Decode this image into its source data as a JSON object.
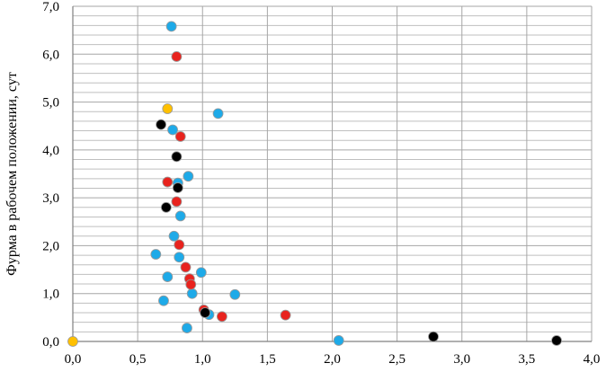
{
  "chart_data": {
    "type": "scatter",
    "title": "",
    "xlabel": "",
    "ylabel": "Фурма в рабочем положении, сут",
    "xlim": [
      0,
      4
    ],
    "ylim": [
      0,
      7
    ],
    "grid": true,
    "x_ticks": [
      "0,0",
      "0,5",
      "1,0",
      "1,5",
      "2,0",
      "2,5",
      "3,0",
      "3,5",
      "4,0"
    ],
    "y_ticks": [
      "0,0",
      "1,0",
      "2,0",
      "3,0",
      "4,0",
      "5,0",
      "6,0",
      "7,0"
    ],
    "colors": {
      "blue": "#1eaae8",
      "red": "#e8231e",
      "black": "#000000",
      "orange": "#ffc000",
      "grid_major": "#a6a6a6",
      "grid_minor": "#bfbfbf",
      "point_outline": "#9a9a9a"
    },
    "series": [
      {
        "color": "#1eaae8",
        "points": [
          [
            0.76,
            6.58
          ],
          [
            1.12,
            4.76
          ],
          [
            0.77,
            4.42
          ],
          [
            0.89,
            3.45
          ],
          [
            0.81,
            3.31
          ],
          [
            0.83,
            2.62
          ],
          [
            0.78,
            2.2
          ],
          [
            0.64,
            1.82
          ],
          [
            0.82,
            1.76
          ],
          [
            0.99,
            1.44
          ],
          [
            0.73,
            1.35
          ],
          [
            1.25,
            0.98
          ],
          [
            0.92,
            1.0
          ],
          [
            0.7,
            0.85
          ],
          [
            1.05,
            0.56
          ],
          [
            0.88,
            0.28
          ],
          [
            2.05,
            0.02
          ]
        ]
      },
      {
        "color": "#e8231e",
        "points": [
          [
            0.8,
            5.95
          ],
          [
            0.83,
            4.28
          ],
          [
            0.73,
            3.33
          ],
          [
            0.8,
            2.92
          ],
          [
            0.82,
            2.02
          ],
          [
            0.87,
            1.55
          ],
          [
            0.9,
            1.31
          ],
          [
            0.91,
            1.19
          ],
          [
            1.01,
            0.66
          ],
          [
            1.15,
            0.52
          ],
          [
            1.64,
            0.55
          ]
        ]
      },
      {
        "color": "#000000",
        "points": [
          [
            0.68,
            4.53
          ],
          [
            0.8,
            3.86
          ],
          [
            0.81,
            3.21
          ],
          [
            0.72,
            2.8
          ],
          [
            1.02,
            0.6
          ],
          [
            2.78,
            0.1
          ],
          [
            3.73,
            0.02
          ]
        ]
      },
      {
        "color": "#ffc000",
        "points": [
          [
            0.0,
            0.0
          ],
          [
            0.73,
            4.86
          ]
        ]
      }
    ]
  }
}
